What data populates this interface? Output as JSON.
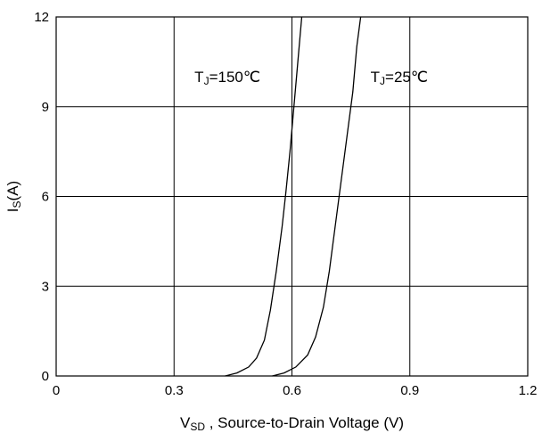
{
  "chart_data": {
    "type": "line",
    "xlabel_main": "V",
    "xlabel_sub": "SD",
    "xlabel_rest": " , Source-to-Drain Voltage (V)",
    "ylabel_main": "I",
    "ylabel_sub": "S",
    "ylabel_rest": "(A)",
    "xlim": [
      0,
      1.2
    ],
    "ylim": [
      0,
      12
    ],
    "xticks": [
      0,
      0.3,
      0.6,
      0.9,
      1.2
    ],
    "xtick_labels": [
      "0",
      "0.3",
      "0.6",
      "0.9",
      "1.2"
    ],
    "yticks": [
      0,
      3,
      6,
      9,
      12
    ],
    "ytick_labels": [
      "0",
      "3",
      "6",
      "9",
      "12"
    ],
    "grid": true,
    "series": [
      {
        "name": "TJ=150℃",
        "label_main": "T",
        "label_sub": "J",
        "label_rest": "=150℃",
        "x": [
          0.43,
          0.46,
          0.49,
          0.51,
          0.53,
          0.545,
          0.56,
          0.575,
          0.585,
          0.595,
          0.605,
          0.615,
          0.625
        ],
        "y": [
          0,
          0.1,
          0.3,
          0.6,
          1.2,
          2.2,
          3.5,
          5.0,
          6.2,
          7.5,
          9.0,
          10.5,
          12
        ]
      },
      {
        "name": "TJ=25℃",
        "label_main": "T",
        "label_sub": "J",
        "label_rest": "=25℃",
        "x": [
          0.55,
          0.58,
          0.61,
          0.64,
          0.66,
          0.68,
          0.695,
          0.71,
          0.725,
          0.74,
          0.755,
          0.765,
          0.775
        ],
        "y": [
          0,
          0.1,
          0.3,
          0.7,
          1.3,
          2.3,
          3.5,
          5.0,
          6.5,
          8.0,
          9.5,
          11.0,
          12
        ]
      }
    ]
  }
}
